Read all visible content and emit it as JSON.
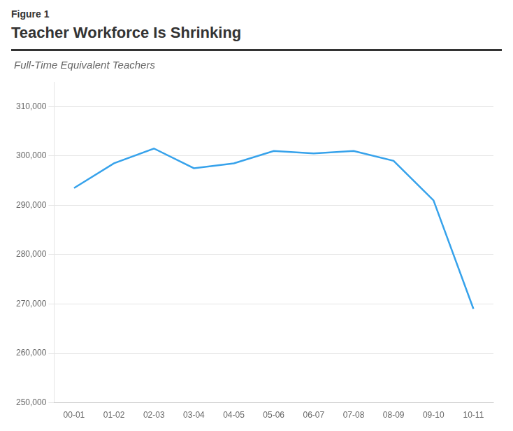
{
  "chart_data": {
    "type": "line",
    "figure_label": "Figure 1",
    "title": "Teacher Workforce Is Shrinking",
    "subtitle": "Full-Time Equivalent Teachers",
    "categories": [
      "00-01",
      "01-02",
      "02-03",
      "03-04",
      "04-05",
      "05-06",
      "06-07",
      "07-08",
      "08-09",
      "09-10",
      "10-11"
    ],
    "values": [
      293500,
      298500,
      301500,
      297500,
      298500,
      301000,
      300500,
      301000,
      299000,
      291000,
      269000
    ],
    "ylim": [
      250000,
      315000
    ],
    "yticks": [
      {
        "value": 250000,
        "label": "250,000"
      },
      {
        "value": 260000,
        "label": "260,000"
      },
      {
        "value": 270000,
        "label": "270,000"
      },
      {
        "value": 280000,
        "label": "280,000"
      },
      {
        "value": 290000,
        "label": "290,000"
      },
      {
        "value": 300000,
        "label": "300,000"
      },
      {
        "value": 310000,
        "label": "310,000"
      }
    ],
    "grid": true
  }
}
